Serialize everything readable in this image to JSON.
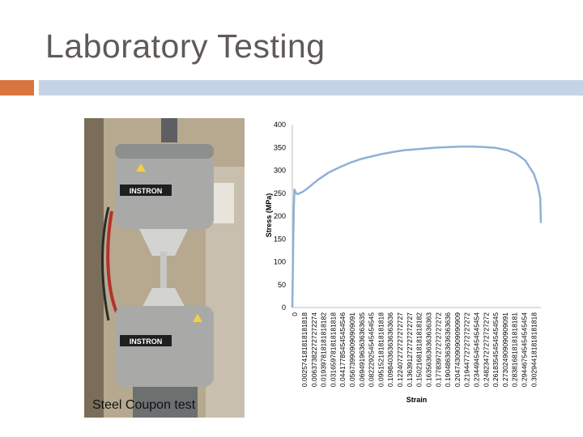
{
  "slide": {
    "title": "Laboratory Testing",
    "photo_caption": "Steel Coupon test",
    "photo_brand_label": "INSTRON"
  },
  "colors": {
    "title_text": "#5f5a57",
    "accent_orange": "#d9743f",
    "accent_blue": "#c5d3e6",
    "series_line": "#8fb0d6",
    "chart_text": "#000000"
  },
  "chart_data": {
    "type": "line",
    "title": "",
    "xlabel": "Strain",
    "ylabel": "Stress (MPa)",
    "ylim": [
      0,
      400
    ],
    "yticks": [
      0,
      50,
      100,
      150,
      200,
      250,
      300,
      350,
      400
    ],
    "grid": false,
    "legend": "none",
    "x_tick_labels": [
      "0",
      "0.002574181818181818",
      "0.006373822727272274",
      "0.019397818181818182",
      "0.031659781818181818",
      "0.044177854545454546",
      "0.056739909090909091",
      "0.069491963636363635",
      "0.082229254545454545",
      "0.095152181818181818",
      "0.109840363636363636",
      "0.122407272727272727",
      "0.136391272727272727",
      "0.150216818181818182",
      "0.163563636363636363",
      "0.177839727272727272",
      "0.190486363636363636",
      "0.204743090909090909",
      "0.219447727272727272",
      "0.234494545454545454",
      "0.248234727272727272",
      "0.261835454545454545",
      "0.273024909090909091",
      "0.283816818181818181",
      "0.294467545454545454",
      "0.302944181818181818"
    ],
    "series": [
      {
        "points": [
          [
            0,
            0
          ],
          [
            0.0005,
            60
          ],
          [
            0.0012,
            150
          ],
          [
            0.0019,
            220
          ],
          [
            0.002574181818181818,
            258
          ],
          [
            0.0045,
            250
          ],
          [
            0.0064,
            248
          ],
          [
            0.0125,
            253
          ],
          [
            0.0194,
            262
          ],
          [
            0.0317,
            280
          ],
          [
            0.0442,
            295
          ],
          [
            0.0567,
            306
          ],
          [
            0.0695,
            316
          ],
          [
            0.0822,
            324
          ],
          [
            0.0952,
            330
          ],
          [
            0.1098,
            336
          ],
          [
            0.1224,
            340
          ],
          [
            0.1364,
            344
          ],
          [
            0.1502,
            346
          ],
          [
            0.1636,
            348
          ],
          [
            0.1778,
            350
          ],
          [
            0.1905,
            351
          ],
          [
            0.2047,
            352
          ],
          [
            0.2194,
            352
          ],
          [
            0.2345,
            351
          ],
          [
            0.2482,
            349
          ],
          [
            0.2618,
            344
          ],
          [
            0.273,
            336
          ],
          [
            0.2838,
            322
          ],
          [
            0.2945,
            292
          ],
          [
            0.299,
            268
          ],
          [
            0.3022,
            240
          ],
          [
            0.30294418181818183,
            185
          ]
        ]
      }
    ]
  }
}
